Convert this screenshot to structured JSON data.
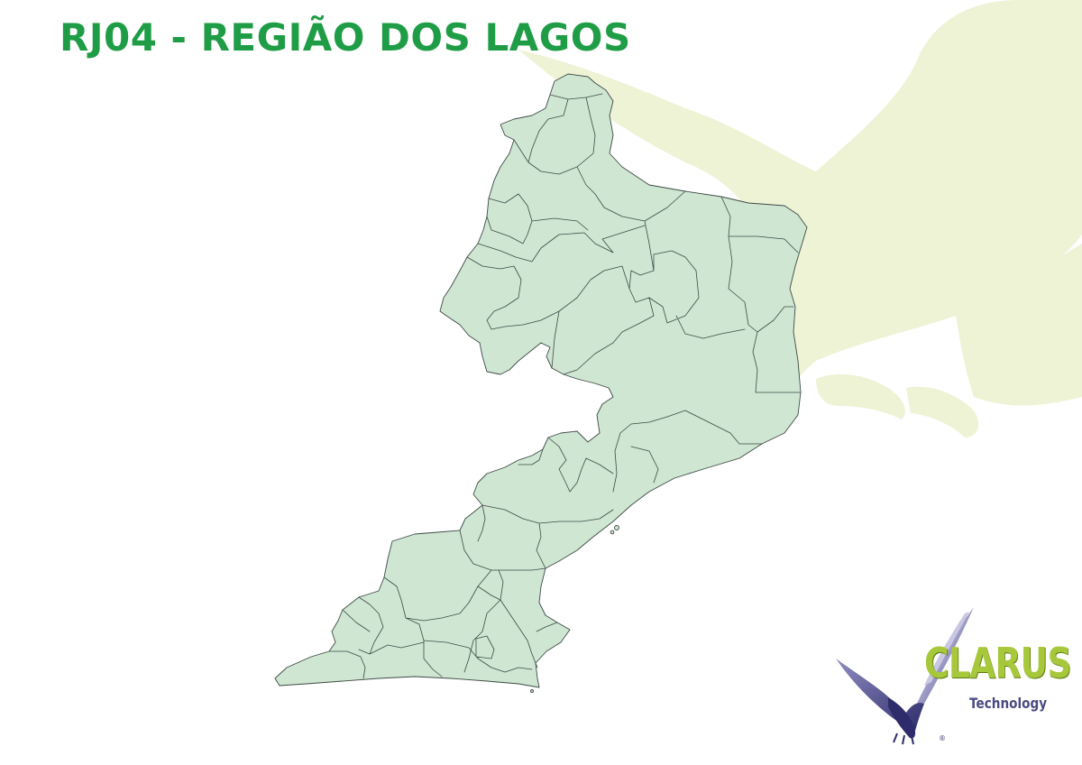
{
  "title": "RJ04 - REGIÃO DOS LAGOS",
  "logo": {
    "brand": "CLARUS",
    "tagline": "Technology",
    "registered_mark": "®"
  },
  "colors": {
    "title": "#1f9d46",
    "map_fill": "#cfe6d3",
    "map_border": "#3f4a44",
    "watermark": "#eef3d6",
    "logo_brand": "#a7c83a",
    "logo_bird": "#4a4a82"
  }
}
